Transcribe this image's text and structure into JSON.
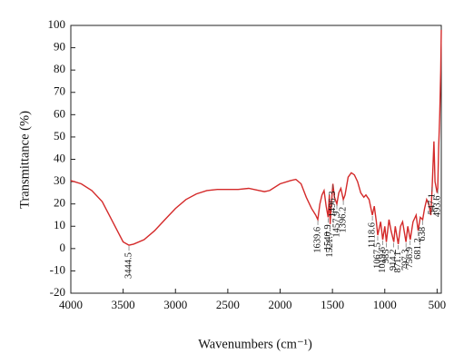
{
  "chart_data": {
    "type": "line",
    "x_label": "Wavenumbers (cm⁻¹)",
    "y_label": "Transmittance (%)",
    "xlim": [
      4000,
      460
    ],
    "ylim": [
      -20,
      100
    ],
    "xticks": [
      4000,
      3500,
      3000,
      2500,
      2000,
      1500,
      1000,
      500
    ],
    "yticks": [
      -20,
      -10,
      0,
      10,
      20,
      30,
      40,
      50,
      60,
      70,
      80,
      90,
      100
    ],
    "series": [
      {
        "color": "#d42a2a",
        "x": [
          4000,
          3900,
          3800,
          3700,
          3600,
          3500,
          3444.5,
          3400,
          3300,
          3200,
          3100,
          3000,
          2900,
          2800,
          2700,
          2600,
          2500,
          2400,
          2300,
          2200,
          2150,
          2100,
          2000,
          1900,
          1850,
          1800,
          1750,
          1700,
          1660,
          1639.6,
          1620,
          1600,
          1580,
          1560,
          1540.9,
          1530,
          1521.7,
          1510,
          1496.3,
          1480,
          1457.9,
          1440,
          1420,
          1396.2,
          1380,
          1350,
          1320,
          1290,
          1260,
          1230,
          1200,
          1180,
          1150,
          1118.6,
          1100,
          1080,
          1067.5,
          1040,
          1019.6,
          1000,
          985,
          960,
          940,
          914.2,
          900,
          871.1,
          850,
          830,
          797.3,
          780,
          756.9,
          730,
          700,
          681.2,
          660,
          638,
          620,
          600,
          580,
          560,
          547.1,
          530,
          520,
          500,
          493.6,
          485,
          475,
          465,
          460
        ],
        "values": [
          30.5,
          29,
          26,
          21,
          12,
          3,
          1.5,
          2,
          4,
          8,
          13,
          18,
          22,
          24.5,
          26,
          26.5,
          26.5,
          26.5,
          27,
          26,
          25.5,
          26,
          29,
          30.5,
          31,
          29,
          23,
          18,
          15,
          13,
          20,
          24,
          26,
          19,
          14,
          24,
          11,
          20,
          29,
          23,
          20,
          25,
          27,
          22,
          24,
          32,
          34,
          33,
          30,
          25,
          23,
          24,
          22,
          15,
          19,
          12,
          6,
          12,
          4,
          10,
          3,
          13,
          8,
          3,
          10,
          2,
          10,
          12,
          3,
          10,
          4,
          12,
          15,
          8,
          14,
          13,
          18,
          22,
          20,
          15,
          28,
          48,
          30,
          25,
          27,
          45,
          60,
          80,
          98
        ]
      }
    ],
    "peaks": [
      3444.5,
      1639.6,
      1540.9,
      1521.7,
      1496.3,
      1457.9,
      1396.2,
      1118.6,
      1067.5,
      1019.6,
      985,
      914.2,
      871.1,
      797.3,
      756.9,
      681.2,
      638,
      547.1,
      493.6
    ]
  }
}
